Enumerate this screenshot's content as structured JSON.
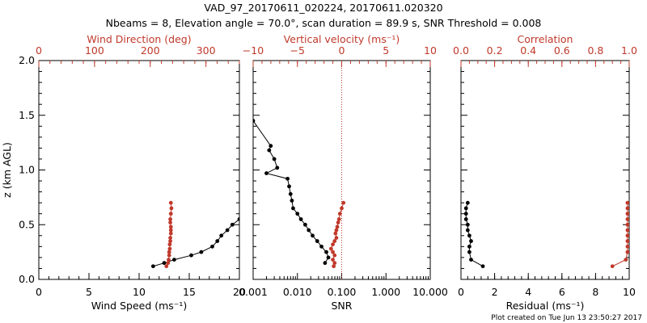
{
  "title_line1": "VAD_97_20170611_020224, 20170611.020320",
  "title_line2": "Nbeams = 8, Elevation angle = 70.0°, scan duration = 89.9 s, SNR Threshold = 0.008",
  "footer": "Plot created on Tue Jun 13 23:50:27 2017",
  "colors": {
    "primary": "#000000",
    "secondary": "#c0392b"
  },
  "chart_data": [
    {
      "type": "line",
      "panel": "wind",
      "ylabel": "z (km AGL)",
      "ylim": [
        0,
        2
      ],
      "yticks": [
        "0.0",
        "0.5",
        "1.0",
        "1.5",
        "2.0"
      ],
      "xlabel": "Wind Speed (ms⁻¹)",
      "xlim": [
        0,
        20
      ],
      "xticks": [
        "0",
        "5",
        "10",
        "15",
        "20"
      ],
      "top_xlabel": "Wind Direction (deg)",
      "top_xlim": [
        0,
        360
      ],
      "top_xticks": [
        "0",
        "100",
        "200",
        "300"
      ],
      "series": [
        {
          "axis": "bottom",
          "color": "black",
          "x": [
            11.4,
            12.5,
            13.5,
            15.2,
            16.2,
            17.3,
            17.8,
            18.2,
            18.8,
            19.3,
            20.0
          ],
          "y": [
            0.12,
            0.15,
            0.18,
            0.22,
            0.25,
            0.3,
            0.35,
            0.4,
            0.45,
            0.5,
            0.55
          ]
        },
        {
          "axis": "top",
          "color": "red",
          "x": [
            229,
            232,
            233,
            234,
            234,
            235,
            235,
            236,
            236,
            237,
            237,
            237,
            236,
            236,
            237,
            238,
            237
          ],
          "y": [
            0.12,
            0.15,
            0.18,
            0.22,
            0.25,
            0.28,
            0.32,
            0.35,
            0.38,
            0.42,
            0.45,
            0.48,
            0.52,
            0.55,
            0.6,
            0.65,
            0.7
          ]
        }
      ]
    },
    {
      "type": "line",
      "panel": "snr",
      "ylim": [
        0,
        2
      ],
      "xlabel": "SNR",
      "xscale": "log",
      "xlim": [
        0.001,
        10
      ],
      "xticks": [
        "0.001",
        "0.010",
        "0.100",
        "1.000",
        "10.000"
      ],
      "top_xlabel": "Vertical velocity (ms⁻¹)",
      "top_xlim": [
        -10,
        10
      ],
      "top_xticks": [
        "−10",
        "−5",
        "0",
        "5",
        "10"
      ],
      "zero_line": "vertical velocity = 0",
      "series": [
        {
          "axis": "bottom",
          "color": "black",
          "x": [
            0.001,
            0.0025,
            0.0023,
            0.003,
            0.0035,
            0.002,
            0.006,
            0.0065,
            0.007,
            0.0075,
            0.008,
            0.01,
            0.012,
            0.015,
            0.018,
            0.022,
            0.028,
            0.035,
            0.045,
            0.05,
            0.042
          ],
          "y": [
            1.45,
            1.22,
            1.18,
            1.1,
            1.02,
            0.97,
            0.92,
            0.85,
            0.78,
            0.72,
            0.65,
            0.6,
            0.55,
            0.5,
            0.45,
            0.4,
            0.35,
            0.3,
            0.25,
            0.2,
            0.15
          ]
        },
        {
          "axis": "top",
          "color": "red",
          "x": [
            0.2,
            0.0,
            -0.2,
            -0.3,
            -0.4,
            -0.5,
            -0.6,
            -0.7,
            -0.6,
            -0.8,
            -1.0,
            -1.2,
            -1.0,
            -0.8,
            -1.0,
            -0.8,
            -0.9
          ],
          "y": [
            0.7,
            0.65,
            0.6,
            0.55,
            0.52,
            0.48,
            0.45,
            0.42,
            0.38,
            0.35,
            0.32,
            0.28,
            0.25,
            0.22,
            0.18,
            0.15,
            0.12
          ]
        }
      ]
    },
    {
      "type": "line",
      "panel": "residual",
      "ylim": [
        0,
        2
      ],
      "xlabel": "Residual (ms⁻¹)",
      "xlim": [
        0,
        10
      ],
      "xticks": [
        "0",
        "2",
        "4",
        "6",
        "8",
        "10"
      ],
      "top_xlabel": "Correlation",
      "top_xlim": [
        0,
        1
      ],
      "top_xticks": [
        "0.0",
        "0.2",
        "0.4",
        "0.6",
        "0.8",
        "1.0"
      ],
      "series": [
        {
          "axis": "bottom",
          "color": "black",
          "x": [
            1.3,
            0.6,
            0.5,
            0.5,
            0.6,
            0.5,
            0.4,
            0.4,
            0.3,
            0.3,
            0.3,
            0.4
          ],
          "y": [
            0.12,
            0.18,
            0.25,
            0.3,
            0.35,
            0.4,
            0.45,
            0.5,
            0.55,
            0.6,
            0.65,
            0.7
          ]
        },
        {
          "axis": "top",
          "color": "red",
          "x": [
            0.9,
            0.98,
            0.99,
            0.99,
            0.99,
            0.99,
            0.99,
            0.99,
            0.99,
            0.99,
            0.99,
            0.99
          ],
          "y": [
            0.12,
            0.18,
            0.25,
            0.3,
            0.35,
            0.4,
            0.45,
            0.5,
            0.55,
            0.6,
            0.65,
            0.7
          ]
        }
      ]
    }
  ]
}
